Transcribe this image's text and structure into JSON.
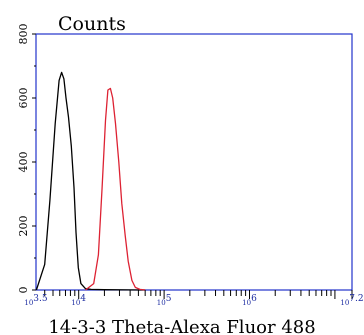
{
  "chart_data": {
    "type": "line",
    "title": "Counts",
    "xlabel": "14-3-3 Theta-Alexa Fluor 488",
    "ylabel": "",
    "x_scale": "log",
    "xlim": [
      3162,
      15849000
    ],
    "ylim": [
      0,
      800
    ],
    "x_ticks": [
      {
        "value": 3162,
        "label": "10^3.5"
      },
      {
        "value": 10000,
        "label": "10^4"
      },
      {
        "value": 100000,
        "label": "10^5"
      },
      {
        "value": 1000000,
        "label": "10^6"
      },
      {
        "value": 15849000,
        "label": "10^7.2"
      }
    ],
    "y_ticks": [
      0,
      200,
      400,
      600,
      800
    ],
    "grid": false,
    "series": [
      {
        "color": "#000000",
        "x": [
          3200,
          4000,
          4600,
          5300,
          5900,
          6300,
          6700,
          7100,
          7600,
          8200,
          8800,
          9300,
          9900,
          10600,
          12000,
          14000,
          20000,
          60000
        ],
        "y": [
          0,
          80,
          280,
          520,
          655,
          680,
          660,
          600,
          540,
          450,
          320,
          180,
          70,
          20,
          4,
          2,
          1,
          0
        ]
      },
      {
        "color": "#dd2233",
        "x": [
          12000,
          15000,
          17000,
          18800,
          20600,
          22000,
          23500,
          25000,
          27000,
          29500,
          32000,
          35000,
          38000,
          42000,
          46000,
          52000,
          60000
        ],
        "y": [
          0,
          20,
          110,
          320,
          530,
          625,
          630,
          600,
          520,
          400,
          270,
          170,
          90,
          30,
          8,
          2,
          0
        ]
      }
    ]
  }
}
